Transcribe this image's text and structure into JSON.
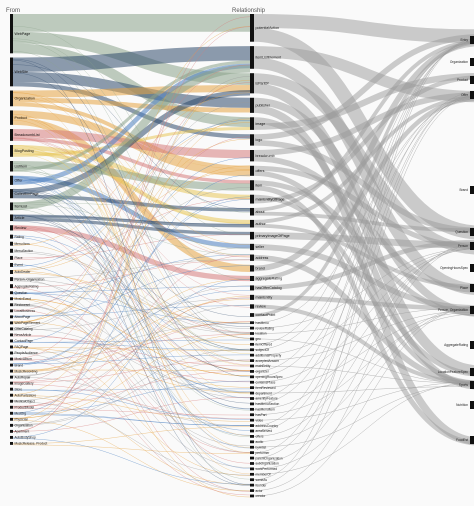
{
  "headers": {
    "from": "From",
    "relationship": "Relationship"
  },
  "colors": {
    "node": "#111111",
    "link_gray": "#9a9a9a",
    "link_dark": "#2f4a6b",
    "link_orange": "#e6a443",
    "link_green": "#8aa38a",
    "link_blue": "#4a7ec0",
    "link_pink": "#d57c7c",
    "link_yellow": "#e8c75a"
  },
  "from_nodes": [
    "WebPage",
    "WebSite",
    "Organization",
    "Product",
    "BreadcrumbList",
    "BlogPosting",
    "ListItem",
    "Offer",
    "CollectionPage",
    "ItemList",
    "Article",
    "Review",
    "Rating",
    "Menu Item",
    "MenuSection",
    "Place",
    "Event",
    "AutoDealer",
    "Person, Organization",
    "AggregateRating",
    "Question",
    "MusicEvent",
    "Restaurant",
    "LocalBusiness",
    "AboutPage",
    "WebPageElement",
    "OfferCatalog",
    "NewsArticle",
    "ContactPage",
    "FAQPage",
    "PeopleAudience",
    "MusicAlbum",
    "Brand",
    "MusicRecording",
    "AutoRepair",
    "ImageGallery",
    "Store",
    "AutoPartsStore",
    "MedicalObject",
    "ProductModel",
    "MedOrg",
    "Physician",
    "Organization",
    "Apartment",
    "AutoBodyShop",
    "MusicRelease, Product"
  ],
  "rel_nodes": [
    "potentialAction",
    "itemListElement",
    "isPartOf",
    "publisher",
    "image",
    "logo",
    "breadcrumb",
    "offers",
    "item",
    "mainEntityOfPage",
    "about",
    "author",
    "primaryImageOfPage",
    "seller",
    "address",
    "brand",
    "aggregateRating",
    "hasOfferCatalog",
    "mainEntity",
    "review",
    "contactPoint",
    "hasMenu",
    "reviewRating",
    "location",
    "geo",
    "itemOffered",
    "subjectOf",
    "additionalProperty",
    "acceptedAnswer",
    "mainEntity",
    "organizer",
    "openingHoursSpec",
    "containsPlace",
    "itemReviewed",
    "department",
    "amenityFeature",
    "hasMenuSection",
    "hasMenuItem",
    "hasPart",
    "video",
    "addressCountry",
    "areaServed",
    "offers",
    "audio",
    "byArtist",
    "performer",
    "parentOrganization",
    "subOrganization",
    "workPerformed",
    "memberOf",
    "sameAs",
    "founder",
    "actor",
    "creator"
  ],
  "right_labels": [
    "Entry",
    "Organization",
    "Product",
    "Offer",
    "Brand",
    "Question",
    "Person",
    "OpeningHoursSpec",
    "Place",
    "Person, Organization",
    "AggregateRating",
    "LocationFeatureSpec",
    "Sports",
    "Nutrition",
    "FoodEst"
  ]
}
